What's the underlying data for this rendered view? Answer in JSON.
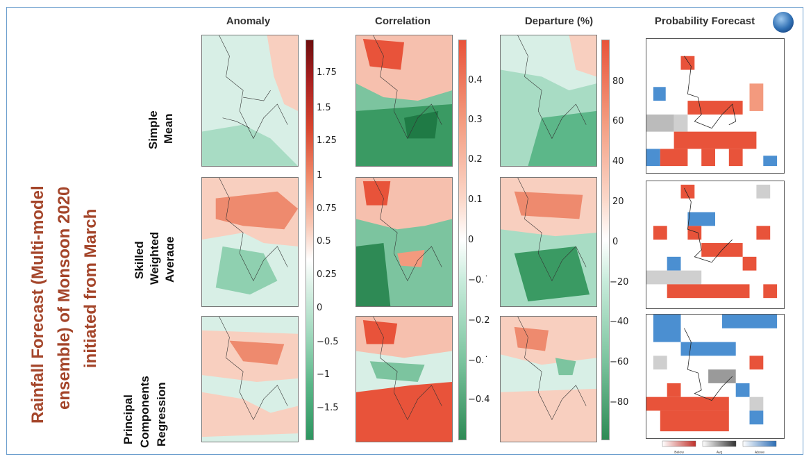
{
  "title": {
    "line1": "Rainfall Forecast (Multi-model",
    "line2": "ensemble) of Monsoon 2020",
    "line3": "initiated from March"
  },
  "columns": {
    "anomaly": "Anomaly",
    "correlation": "Correlation",
    "departure": "Departure (%)",
    "probability": "Probability Forecast"
  },
  "rows": [
    {
      "lines": [
        "Simple",
        "Mean"
      ]
    },
    {
      "lines": [
        "Skilled",
        "Weighted",
        "Average"
      ]
    },
    {
      "lines": [
        "Principal",
        "Components",
        "Regression"
      ]
    }
  ],
  "colorbars": {
    "anomaly": {
      "ticks": [
        "1.75",
        "1.5",
        "1.25",
        "1",
        "0.75",
        "0.5",
        "0.25",
        "0",
        "−0.5",
        "−1",
        "−1.5"
      ]
    },
    "correlation": {
      "ticks": [
        "0.4",
        "0.3",
        "0.2",
        "0.1",
        "0",
        "−0.˙",
        "−0.2",
        "−0.˙",
        "−0.4"
      ]
    },
    "departure": {
      "ticks": [
        "80",
        "60",
        "40",
        "20",
        "0",
        "−20",
        "−40",
        "−60",
        "−80"
      ]
    }
  },
  "probability_legend": {
    "groups": [
      "Below",
      "Avg",
      "Above"
    ]
  },
  "colors": {
    "positive": "#e8533a",
    "positive_light": "#f6c0ae",
    "negative": "#3a9a63",
    "negative_light": "#bfe6d5",
    "prob_below": "#e8533a",
    "prob_above": "#4b8fd1",
    "prob_normal": "#9a9a9a",
    "title": "#a4452a"
  },
  "icons": {
    "globe": "globe-icon"
  }
}
